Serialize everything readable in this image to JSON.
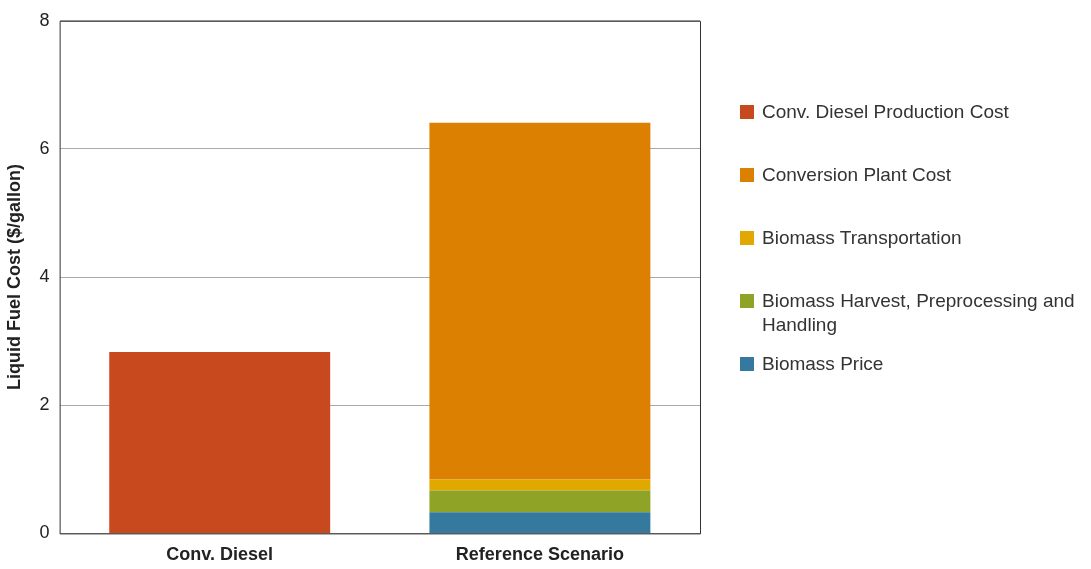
{
  "chart_data": {
    "type": "bar",
    "stacked": true,
    "ylabel": "Liquid Fuel Cost ($/gallon)",
    "categories": [
      "Conv. Diesel",
      "Reference Scenario"
    ],
    "series": [
      {
        "name": "Biomass Price",
        "color": "#357a9e",
        "values": [
          null,
          0.33
        ]
      },
      {
        "name": "Biomass Harvest, Preprocessing and Handling",
        "color": "#8fa326",
        "values": [
          null,
          0.34
        ]
      },
      {
        "name": "Biomass Transportation",
        "color": "#e0a800",
        "values": [
          null,
          0.17
        ]
      },
      {
        "name": "Conversion Plant Cost",
        "color": "#db8000",
        "values": [
          null,
          5.57
        ]
      },
      {
        "name": "Conv. Diesel Production Cost",
        "color": "#c9491f",
        "values": [
          2.83,
          null
        ]
      }
    ],
    "ylim": [
      0,
      8
    ],
    "yticks": [
      0,
      2,
      4,
      6,
      8
    ],
    "grid": "y",
    "legend": "right"
  }
}
